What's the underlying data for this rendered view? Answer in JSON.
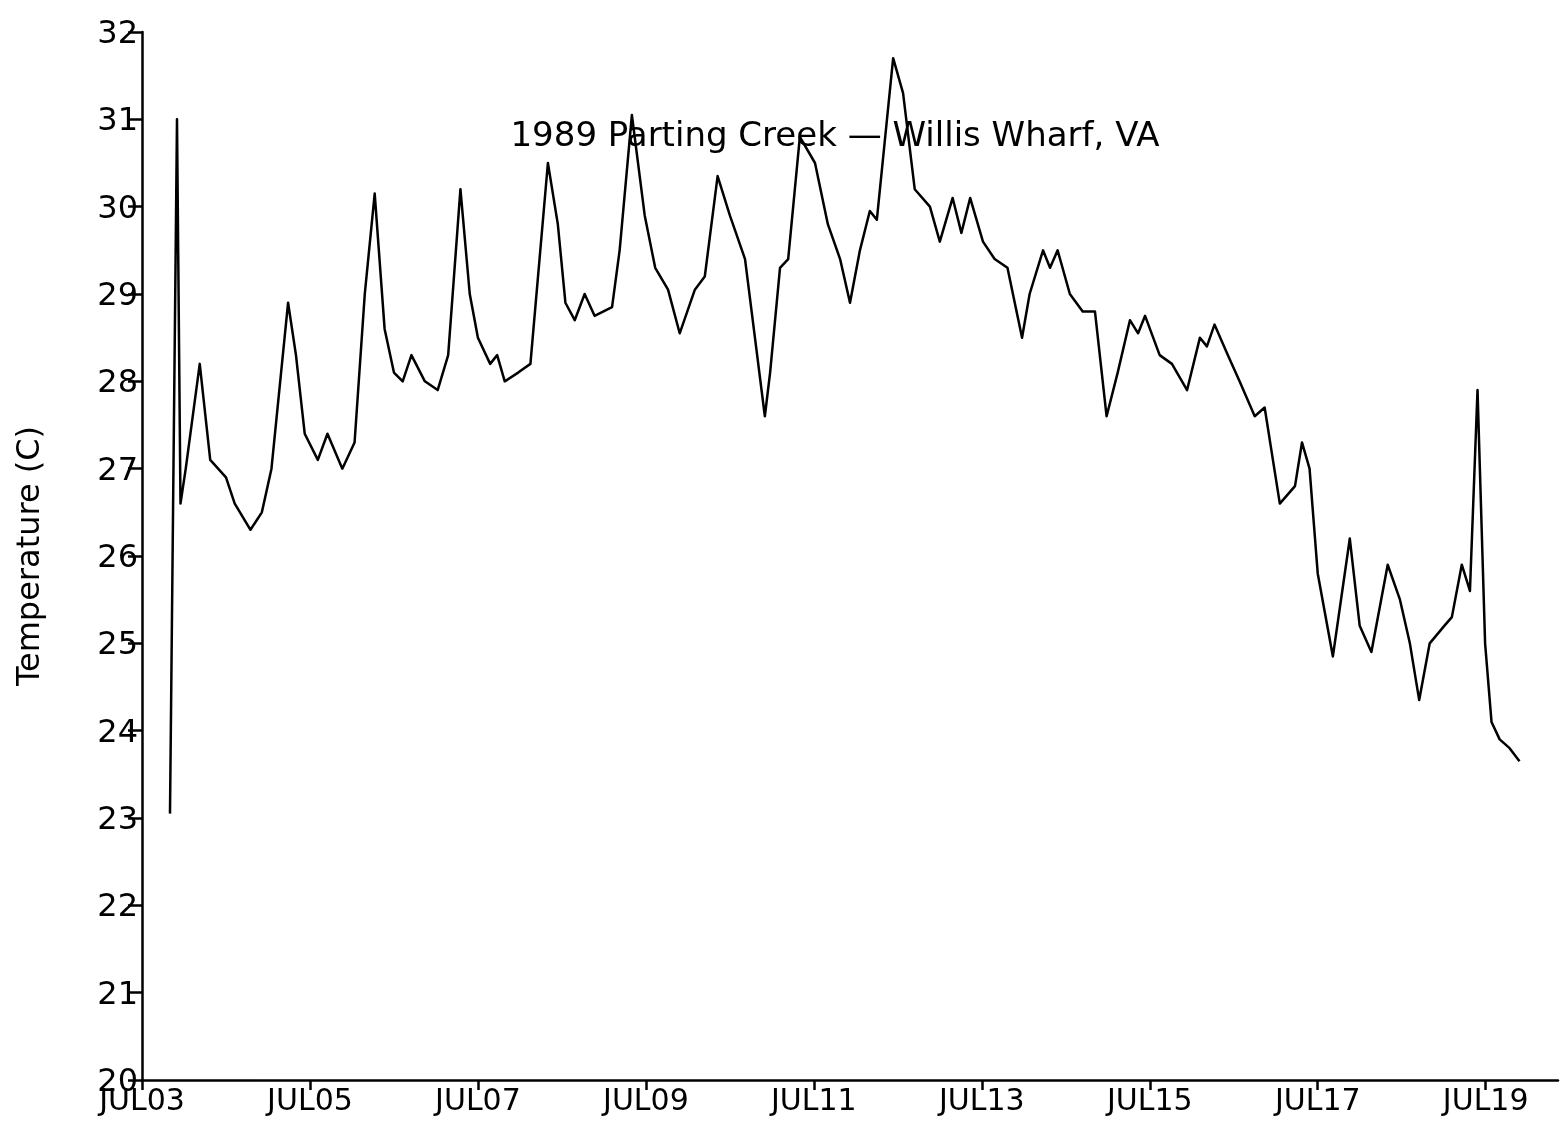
{
  "chart_data": {
    "type": "line",
    "title": "1989 Parting Creek — Willis Wharf, VA",
    "ylabel": "Temperature (C)",
    "x": [
      "1989-07-03T08:00",
      "1989-07-03T10:00",
      "1989-07-03T11:00",
      "1989-07-03T12:30",
      "1989-07-03T16:30",
      "1989-07-03T19:30",
      "1989-07-04T00:00",
      "1989-07-04T02:30",
      "1989-07-04T07:00",
      "1989-07-04T10:15",
      "1989-07-04T13:00",
      "1989-07-04T17:45",
      "1989-07-04T20:00",
      "1989-07-04T22:30",
      "1989-07-05T02:15",
      "1989-07-05T05:00",
      "1989-07-05T09:15",
      "1989-07-05T12:45",
      "1989-07-05T15:40",
      "1989-07-05T18:30",
      "1989-07-05T21:20",
      "1989-07-06T00:00",
      "1989-07-06T02:30",
      "1989-07-06T05:00",
      "1989-07-06T08:50",
      "1989-07-06T12:30",
      "1989-07-06T15:30",
      "1989-07-06T19:00",
      "1989-07-06T21:40",
      "1989-07-07T00:00",
      "1989-07-07T03:30",
      "1989-07-07T05:30",
      "1989-07-07T07:40",
      "1989-07-07T11:30",
      "1989-07-07T15:00",
      "1989-07-07T20:00",
      "1989-07-07T22:50",
      "1989-07-08T01:00",
      "1989-07-08T03:40",
      "1989-07-08T06:30",
      "1989-07-08T09:20",
      "1989-07-08T14:20",
      "1989-07-08T16:30",
      "1989-07-08T20:00",
      "1989-07-08T23:40",
      "1989-07-09T02:40",
      "1989-07-09T06:20",
      "1989-07-09T09:40",
      "1989-07-09T14:00",
      "1989-07-09T16:50",
      "1989-07-09T20:30",
      "1989-07-10T00:00",
      "1989-07-10T04:20",
      "1989-07-10T07:10",
      "1989-07-10T10:00",
      "1989-07-10T11:30",
      "1989-07-10T14:20",
      "1989-07-10T16:40",
      "1989-07-10T20:00",
      "1989-07-11T00:20",
      "1989-07-11T04:00",
      "1989-07-11T07:30",
      "1989-07-11T10:20",
      "1989-07-11T13:10",
      "1989-07-11T16:00",
      "1989-07-11T18:00",
      "1989-07-11T22:40",
      "1989-07-12T01:30",
      "1989-07-12T04:50",
      "1989-07-12T09:10",
      "1989-07-12T12:00",
      "1989-07-12T15:40",
      "1989-07-12T18:10",
      "1989-07-12T20:40",
      "1989-07-13T00:20",
      "1989-07-13T03:40",
      "1989-07-13T07:20",
      "1989-07-13T11:30",
      "1989-07-13T13:40",
      "1989-07-13T17:30",
      "1989-07-13T19:30",
      "1989-07-13T21:40",
      "1989-07-14T01:10",
      "1989-07-14T04:50",
      "1989-07-14T08:20",
      "1989-07-14T11:40",
      "1989-07-14T14:50",
      "1989-07-14T18:20",
      "1989-07-14T20:40",
      "1989-07-14T22:40",
      "1989-07-15T02:50",
      "1989-07-15T06:20",
      "1989-07-15T10:40",
      "1989-07-15T14:20",
      "1989-07-15T16:20",
      "1989-07-15T18:30",
      "1989-07-15T22:20",
      "1989-07-16T01:40",
      "1989-07-16T06:00",
      "1989-07-16T08:50",
      "1989-07-16T13:10",
      "1989-07-16T17:30",
      "1989-07-16T19:30",
      "1989-07-16T21:40",
      "1989-07-17T00:00",
      "1989-07-17T04:20",
      "1989-07-17T09:10",
      "1989-07-17T12:00",
      "1989-07-17T15:20",
      "1989-07-17T20:00",
      "1989-07-17T23:30",
      "1989-07-18T02:20",
      "1989-07-18T05:00",
      "1989-07-18T08:00",
      "1989-07-18T12:10",
      "1989-07-18T14:20",
      "1989-07-18T17:10",
      "1989-07-18T19:30",
      "1989-07-18T21:40",
      "1989-07-18T23:50",
      "1989-07-19T01:40",
      "1989-07-19T04:00",
      "1989-07-19T06:50",
      "1989-07-19T09:40"
    ],
    "series": [
      {
        "color": "#000000",
        "values": [
          23.05,
          31.0,
          26.6,
          27.0,
          28.2,
          27.1,
          26.9,
          26.6,
          26.3,
          26.5,
          27.0,
          28.9,
          28.3,
          27.4,
          27.1,
          27.4,
          27.0,
          27.3,
          29.0,
          30.15,
          28.6,
          28.1,
          28.0,
          28.3,
          28.0,
          27.9,
          28.3,
          30.2,
          29.0,
          28.5,
          28.2,
          28.3,
          28.0,
          28.1,
          28.2,
          30.5,
          29.8,
          28.9,
          28.7,
          29.0,
          28.75,
          28.85,
          29.5,
          31.05,
          29.9,
          29.3,
          29.05,
          28.55,
          29.05,
          29.2,
          30.35,
          29.9,
          29.4,
          28.5,
          27.6,
          28.1,
          29.3,
          29.4,
          30.8,
          30.5,
          29.8,
          29.4,
          28.9,
          29.5,
          29.95,
          29.85,
          31.7,
          31.3,
          30.2,
          30.0,
          29.6,
          30.1,
          29.7,
          30.1,
          29.6,
          29.4,
          29.3,
          28.5,
          29.0,
          29.5,
          29.3,
          29.5,
          29.0,
          28.8,
          28.8,
          27.6,
          28.1,
          28.7,
          28.55,
          28.75,
          28.3,
          28.2,
          27.9,
          28.5,
          28.4,
          28.65,
          28.3,
          28.0,
          27.6,
          27.7,
          26.6,
          26.8,
          27.3,
          27.0,
          25.8,
          24.85,
          26.2,
          25.2,
          24.9,
          25.9,
          25.5,
          25.0,
          24.35,
          25.0,
          25.2,
          25.3,
          25.9,
          25.6,
          27.9,
          25.0,
          24.1,
          23.9,
          23.8,
          23.65
        ]
      }
    ],
    "xlim": [
      "1989-07-03",
      "1989-07-19T20:40"
    ],
    "xticks": [
      {
        "value": "1989-07-03",
        "label": "JUL03"
      },
      {
        "value": "1989-07-05",
        "label": "JUL05"
      },
      {
        "value": "1989-07-07",
        "label": "JUL07"
      },
      {
        "value": "1989-07-09",
        "label": "JUL09"
      },
      {
        "value": "1989-07-11",
        "label": "JUL11"
      },
      {
        "value": "1989-07-13",
        "label": "JUL13"
      },
      {
        "value": "1989-07-15",
        "label": "JUL15"
      },
      {
        "value": "1989-07-17",
        "label": "JUL17"
      },
      {
        "value": "1989-07-19",
        "label": "JUL19"
      }
    ],
    "ylim": [
      20,
      32
    ],
    "yticks": [
      20,
      21,
      22,
      23,
      24,
      25,
      26,
      27,
      28,
      29,
      30,
      31,
      32
    ]
  }
}
